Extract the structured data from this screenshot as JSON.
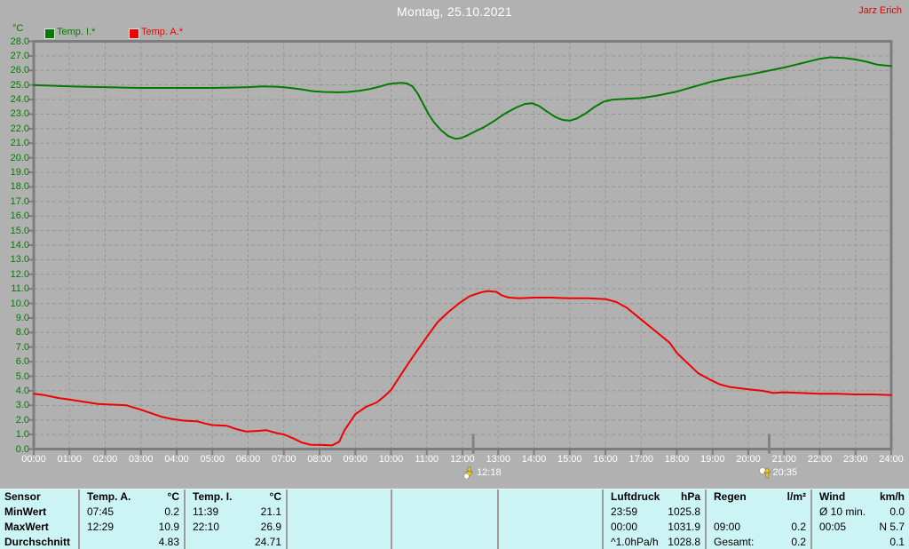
{
  "header": {
    "title": "Montag, 25.10.2021",
    "owner": "Jarz Erich"
  },
  "legend": {
    "items": [
      {
        "label": "Temp. I.*",
        "color": "#007c00"
      },
      {
        "label": "Temp. A.*",
        "color": "#ee0000"
      }
    ]
  },
  "colors": {
    "background": "#b1b1b1",
    "grid": "#959595",
    "axis": "#7d7d7d",
    "title_text": "#ffffff",
    "owner_text": "#e00000",
    "y_tick_text": "#007c00",
    "x_tick_text": "#ffffff",
    "table_background": "#cdf4f4",
    "table_separator": "#9c9c9c"
  },
  "chart_data": {
    "type": "line",
    "title": "Montag, 25.10.2021",
    "grid": "dashed",
    "x_axis": {
      "min": 0,
      "max": 24,
      "tick_labels": [
        "00:00",
        "01:00",
        "02:00",
        "03:00",
        "04:00",
        "05:00",
        "06:00",
        "07:00",
        "08:00",
        "09:00",
        "10:00",
        "11:00",
        "12:00",
        "13:00",
        "14:00",
        "15:00",
        "16:00",
        "17:00",
        "18:00",
        "19:00",
        "20:00",
        "21:00",
        "22:00",
        "23:00",
        "24:00"
      ]
    },
    "y_axis": {
      "unit": "°C",
      "min": 0,
      "max": 28,
      "tick_step": 1,
      "tick_labels": [
        "28.0",
        "27.0",
        "26.0",
        "25.0",
        "24.0",
        "23.0",
        "22.0",
        "21.0",
        "20.0",
        "19.0",
        "18.0",
        "17.0",
        "16.0",
        "15.0",
        "14.0",
        "13.0",
        "12.0",
        "11.0",
        "10.0",
        "9.0",
        "8.0",
        "7.0",
        "6.0",
        "5.0",
        "4.0",
        "3.0",
        "2.0",
        "1.0",
        "0.0"
      ]
    },
    "series": [
      {
        "name": "Temp. I.*",
        "color": "#007c00",
        "points": [
          [
            0,
            25.0
          ],
          [
            0.5,
            24.95
          ],
          [
            1,
            24.9
          ],
          [
            1.5,
            24.87
          ],
          [
            2,
            24.85
          ],
          [
            2.5,
            24.82
          ],
          [
            3,
            24.8
          ],
          [
            3.5,
            24.8
          ],
          [
            4,
            24.8
          ],
          [
            4.5,
            24.8
          ],
          [
            5,
            24.8
          ],
          [
            5.5,
            24.82
          ],
          [
            6,
            24.85
          ],
          [
            6.4,
            24.9
          ],
          [
            6.8,
            24.88
          ],
          [
            7.1,
            24.82
          ],
          [
            7.5,
            24.7
          ],
          [
            7.8,
            24.58
          ],
          [
            8.1,
            24.52
          ],
          [
            8.5,
            24.5
          ],
          [
            8.8,
            24.52
          ],
          [
            9.1,
            24.6
          ],
          [
            9.4,
            24.72
          ],
          [
            9.7,
            24.9
          ],
          [
            9.9,
            25.05
          ],
          [
            10.1,
            25.12
          ],
          [
            10.3,
            25.15
          ],
          [
            10.45,
            25.1
          ],
          [
            10.6,
            24.9
          ],
          [
            10.75,
            24.4
          ],
          [
            10.9,
            23.7
          ],
          [
            11.05,
            23.0
          ],
          [
            11.2,
            22.45
          ],
          [
            11.4,
            21.9
          ],
          [
            11.6,
            21.5
          ],
          [
            11.8,
            21.3
          ],
          [
            11.95,
            21.35
          ],
          [
            12.1,
            21.5
          ],
          [
            12.3,
            21.75
          ],
          [
            12.6,
            22.1
          ],
          [
            12.9,
            22.55
          ],
          [
            13.2,
            23.05
          ],
          [
            13.5,
            23.45
          ],
          [
            13.75,
            23.7
          ],
          [
            13.95,
            23.75
          ],
          [
            14.15,
            23.55
          ],
          [
            14.35,
            23.2
          ],
          [
            14.6,
            22.8
          ],
          [
            14.8,
            22.6
          ],
          [
            15,
            22.55
          ],
          [
            15.2,
            22.7
          ],
          [
            15.45,
            23.05
          ],
          [
            15.7,
            23.5
          ],
          [
            15.95,
            23.85
          ],
          [
            16.2,
            24.0
          ],
          [
            16.6,
            24.05
          ],
          [
            17,
            24.1
          ],
          [
            17.5,
            24.3
          ],
          [
            18,
            24.55
          ],
          [
            18.5,
            24.9
          ],
          [
            19,
            25.25
          ],
          [
            19.5,
            25.5
          ],
          [
            20,
            25.7
          ],
          [
            20.5,
            25.95
          ],
          [
            21,
            26.2
          ],
          [
            21.5,
            26.5
          ],
          [
            22,
            26.8
          ],
          [
            22.3,
            26.9
          ],
          [
            22.7,
            26.85
          ],
          [
            23,
            26.75
          ],
          [
            23.3,
            26.6
          ],
          [
            23.6,
            26.4
          ],
          [
            24,
            26.3
          ]
        ]
      },
      {
        "name": "Temp. A.*",
        "color": "#ee0000",
        "points": [
          [
            0,
            3.8
          ],
          [
            0.3,
            3.7
          ],
          [
            0.7,
            3.5
          ],
          [
            1,
            3.4
          ],
          [
            1.4,
            3.25
          ],
          [
            1.8,
            3.1
          ],
          [
            2.2,
            3.05
          ],
          [
            2.6,
            3.0
          ],
          [
            2.8,
            2.85
          ],
          [
            3,
            2.7
          ],
          [
            3.3,
            2.45
          ],
          [
            3.6,
            2.2
          ],
          [
            3.9,
            2.05
          ],
          [
            4.2,
            1.95
          ],
          [
            4.6,
            1.9
          ],
          [
            4.8,
            1.75
          ],
          [
            5,
            1.65
          ],
          [
            5.4,
            1.6
          ],
          [
            5.7,
            1.35
          ],
          [
            5.95,
            1.2
          ],
          [
            6.3,
            1.25
          ],
          [
            6.5,
            1.3
          ],
          [
            6.8,
            1.1
          ],
          [
            7,
            1.0
          ],
          [
            7.25,
            0.75
          ],
          [
            7.5,
            0.45
          ],
          [
            7.75,
            0.3
          ],
          [
            8.1,
            0.28
          ],
          [
            8.35,
            0.25
          ],
          [
            8.55,
            0.5
          ],
          [
            8.7,
            1.3
          ],
          [
            9,
            2.4
          ],
          [
            9.3,
            2.9
          ],
          [
            9.6,
            3.2
          ],
          [
            9.8,
            3.6
          ],
          [
            10,
            4.05
          ],
          [
            10.3,
            5.2
          ],
          [
            10.6,
            6.3
          ],
          [
            10.8,
            7.0
          ],
          [
            11,
            7.7
          ],
          [
            11.3,
            8.7
          ],
          [
            11.6,
            9.4
          ],
          [
            11.9,
            10.0
          ],
          [
            12.2,
            10.5
          ],
          [
            12.5,
            10.75
          ],
          [
            12.7,
            10.85
          ],
          [
            12.95,
            10.8
          ],
          [
            13.1,
            10.55
          ],
          [
            13.3,
            10.4
          ],
          [
            13.6,
            10.35
          ],
          [
            14,
            10.4
          ],
          [
            14.5,
            10.4
          ],
          [
            15,
            10.35
          ],
          [
            15.5,
            10.35
          ],
          [
            16,
            10.3
          ],
          [
            16.3,
            10.1
          ],
          [
            16.6,
            9.7
          ],
          [
            16.9,
            9.1
          ],
          [
            17.2,
            8.5
          ],
          [
            17.5,
            7.9
          ],
          [
            17.8,
            7.3
          ],
          [
            18,
            6.6
          ],
          [
            18.3,
            5.9
          ],
          [
            18.6,
            5.2
          ],
          [
            18.9,
            4.8
          ],
          [
            19.2,
            4.45
          ],
          [
            19.5,
            4.25
          ],
          [
            20,
            4.1
          ],
          [
            20.4,
            4.0
          ],
          [
            20.7,
            3.85
          ],
          [
            21,
            3.9
          ],
          [
            21.5,
            3.85
          ],
          [
            22,
            3.8
          ],
          [
            22.5,
            3.8
          ],
          [
            23,
            3.75
          ],
          [
            23.5,
            3.75
          ],
          [
            24,
            3.7
          ]
        ]
      }
    ],
    "markers": [
      {
        "time": "12:18",
        "hour": 12.3,
        "type": "moon-set"
      },
      {
        "time": "20:35",
        "hour": 20.583,
        "type": "moon-rise"
      }
    ]
  },
  "table": {
    "row_labels": [
      "Sensor",
      "MinWert",
      "MaxWert",
      "Durchschnitt"
    ],
    "columns": [
      {
        "title": "Temp. A.",
        "unit": "°C",
        "rows": [
          [
            "07:45",
            "0.2"
          ],
          [
            "12:29",
            "10.9"
          ],
          [
            "",
            "4.83"
          ]
        ]
      },
      {
        "title": "Temp. I.",
        "unit": "°C",
        "rows": [
          [
            "11:39",
            "21.1"
          ],
          [
            "22:10",
            "26.9"
          ],
          [
            "",
            "24.71"
          ]
        ]
      },
      {
        "title": "",
        "unit": "",
        "rows": [
          [
            "",
            ""
          ],
          [
            "",
            ""
          ],
          [
            "",
            ""
          ]
        ]
      },
      {
        "title": "",
        "unit": "",
        "rows": [
          [
            "",
            ""
          ],
          [
            "",
            ""
          ],
          [
            "",
            ""
          ]
        ]
      },
      {
        "title": "",
        "unit": "",
        "rows": [
          [
            "",
            ""
          ],
          [
            "",
            ""
          ],
          [
            "",
            ""
          ]
        ]
      },
      {
        "title": "Luftdruck",
        "unit": "hPa",
        "rows": [
          [
            "23:59",
            "1025.8"
          ],
          [
            "00:00",
            "1031.9"
          ],
          [
            "^1.0hPa/h",
            "1028.8"
          ]
        ]
      },
      {
        "title": "Regen",
        "unit": "l/m²",
        "rows": [
          [
            "",
            ""
          ],
          [
            "09:00",
            "0.2"
          ],
          [
            "Gesamt:",
            "0.2"
          ]
        ]
      },
      {
        "title": "Wind",
        "unit": "km/h",
        "rows": [
          [
            "Ø 10 min.",
            "0.0"
          ],
          [
            "00:05",
            "N 5.7"
          ],
          [
            "",
            "0.1"
          ]
        ]
      }
    ]
  }
}
